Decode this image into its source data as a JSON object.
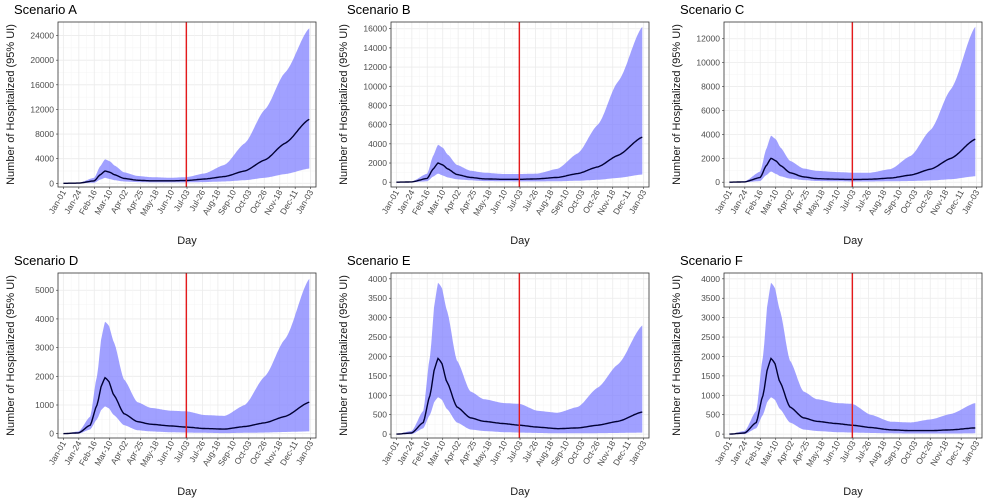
{
  "chart_data": [
    {
      "type": "area",
      "title": "Scenario A",
      "xlabel": "Day",
      "ylabel": "Number of Hospitalized (95% UI)",
      "x_ticks": [
        "Jan-01",
        "Jan-24",
        "Feb-16",
        "Mar-10",
        "Apr-02",
        "Apr-25",
        "May-18",
        "Jun-10",
        "Jul-03",
        "Jul-26",
        "Aug-18",
        "Sep-10",
        "Oct-03",
        "Oct-26",
        "Nov-18",
        "Dec-11",
        "Jan-03"
      ],
      "y_ticks": [
        0,
        4000,
        8000,
        12000,
        16000,
        20000,
        24000
      ],
      "ylim": [
        -600,
        26200
      ],
      "x_domain_days": [
        -8,
        376
      ],
      "vline_day": 183,
      "vline_color": "#e41a1c",
      "band_color": "#8080ff",
      "line_color": "#000033",
      "grid": true,
      "series": [
        {
          "x": [
            0,
            23,
            46,
            55,
            62,
            69,
            76,
            90,
            110,
            130,
            160,
            183,
            210,
            240,
            270,
            300,
            330,
            366
          ],
          "values": [
            0,
            30,
            400,
            1400,
            2000,
            1800,
            1400,
            800,
            500,
            400,
            400,
            450,
            700,
            1100,
            2000,
            3800,
            6500,
            10400
          ]
        },
        {
          "x": [
            0,
            23,
            46,
            55,
            62,
            69,
            76,
            90,
            110,
            130,
            160,
            183,
            210,
            240,
            270,
            300,
            330,
            366
          ],
          "values": [
            0,
            0,
            100,
            600,
            900,
            700,
            500,
            300,
            200,
            150,
            150,
            150,
            200,
            300,
            500,
            900,
            1500,
            2400
          ]
        },
        {
          "x": [
            0,
            23,
            46,
            55,
            62,
            69,
            76,
            90,
            110,
            130,
            160,
            183,
            210,
            240,
            270,
            300,
            330,
            366
          ],
          "values": [
            0,
            80,
            900,
            2800,
            3900,
            3600,
            2900,
            1800,
            1200,
            1000,
            900,
            1000,
            1600,
            3000,
            6500,
            12000,
            18000,
            25200
          ]
        }
      ]
    },
    {
      "type": "area",
      "title": "Scenario B",
      "xlabel": "Day",
      "ylabel": "Number of Hospitalized (95% UI)",
      "x_ticks": [
        "Jan-01",
        "Jan-24",
        "Feb-16",
        "Mar-10",
        "Apr-02",
        "Apr-25",
        "May-18",
        "Jun-10",
        "Jul-03",
        "Jul-26",
        "Aug-18",
        "Sep-10",
        "Oct-03",
        "Oct-26",
        "Nov-18",
        "Dec-11",
        "Jan-03"
      ],
      "y_ticks": [
        0,
        2000,
        4000,
        6000,
        8000,
        10000,
        12000,
        14000,
        16000
      ],
      "ylim": [
        -500,
        16700
      ],
      "x_domain_days": [
        -8,
        376
      ],
      "vline_day": 183,
      "vline_color": "#e41a1c",
      "band_color": "#8080ff",
      "line_color": "#000033",
      "grid": true,
      "series": [
        {
          "x": [
            0,
            23,
            46,
            55,
            62,
            69,
            76,
            90,
            110,
            130,
            160,
            183,
            210,
            240,
            270,
            300,
            330,
            366
          ],
          "values": [
            0,
            30,
            400,
            1400,
            2000,
            1800,
            1400,
            800,
            500,
            350,
            300,
            300,
            350,
            500,
            900,
            1600,
            2800,
            4700
          ]
        },
        {
          "x": [
            0,
            23,
            46,
            55,
            62,
            69,
            76,
            90,
            110,
            130,
            160,
            183,
            210,
            240,
            270,
            300,
            330,
            366
          ],
          "values": [
            0,
            0,
            100,
            600,
            900,
            700,
            500,
            300,
            200,
            120,
            100,
            80,
            80,
            100,
            150,
            250,
            450,
            800
          ]
        },
        {
          "x": [
            0,
            23,
            46,
            55,
            62,
            69,
            76,
            90,
            110,
            130,
            160,
            183,
            210,
            240,
            270,
            300,
            330,
            366
          ],
          "values": [
            0,
            80,
            900,
            2800,
            3900,
            3600,
            2900,
            1800,
            1200,
            1000,
            850,
            850,
            900,
            1400,
            3000,
            6000,
            10500,
            16200
          ]
        }
      ]
    },
    {
      "type": "area",
      "title": "Scenario C",
      "xlabel": "Day",
      "ylabel": "Number of Hospitalized (95% UI)",
      "x_ticks": [
        "Jan-01",
        "Jan-24",
        "Feb-16",
        "Mar-10",
        "Apr-02",
        "Apr-25",
        "May-18",
        "Jun-10",
        "Jul-03",
        "Jul-26",
        "Aug-18",
        "Sep-10",
        "Oct-03",
        "Oct-26",
        "Nov-18",
        "Dec-11",
        "Jan-03"
      ],
      "y_ticks": [
        0,
        2000,
        4000,
        6000,
        8000,
        10000,
        12000
      ],
      "ylim": [
        -400,
        13400
      ],
      "x_domain_days": [
        -8,
        376
      ],
      "vline_day": 183,
      "vline_color": "#e41a1c",
      "band_color": "#8080ff",
      "line_color": "#000033",
      "grid": true,
      "series": [
        {
          "x": [
            0,
            23,
            46,
            55,
            62,
            69,
            76,
            90,
            110,
            130,
            160,
            183,
            210,
            240,
            270,
            300,
            330,
            366
          ],
          "values": [
            0,
            30,
            400,
            1400,
            2000,
            1800,
            1400,
            800,
            450,
            300,
            250,
            230,
            250,
            350,
            600,
            1100,
            2000,
            3600
          ]
        },
        {
          "x": [
            0,
            23,
            46,
            55,
            62,
            69,
            76,
            90,
            110,
            130,
            160,
            183,
            210,
            240,
            270,
            300,
            330,
            366
          ],
          "values": [
            0,
            0,
            100,
            600,
            900,
            700,
            500,
            300,
            180,
            100,
            80,
            60,
            60,
            80,
            100,
            150,
            250,
            500
          ]
        },
        {
          "x": [
            0,
            23,
            46,
            55,
            62,
            69,
            76,
            90,
            110,
            130,
            160,
            183,
            210,
            240,
            270,
            300,
            330,
            366
          ],
          "values": [
            0,
            80,
            900,
            2800,
            3900,
            3600,
            2900,
            1800,
            1150,
            950,
            850,
            800,
            800,
            1100,
            2200,
            4400,
            7800,
            13000
          ]
        }
      ]
    },
    {
      "type": "area",
      "title": "Scenario D",
      "xlabel": "Day",
      "ylabel": "Number of Hospitalized (95% UI)",
      "x_ticks": [
        "Jan-01",
        "Jan-24",
        "Feb-16",
        "Mar-10",
        "Apr-02",
        "Apr-25",
        "May-18",
        "Jun-10",
        "Jul-03",
        "Jul-26",
        "Aug-18",
        "Sep-10",
        "Oct-03",
        "Oct-26",
        "Nov-18",
        "Dec-11",
        "Jan-03"
      ],
      "y_ticks": [
        0,
        1000,
        2000,
        3000,
        4000,
        5000
      ],
      "ylim": [
        -150,
        5600
      ],
      "x_domain_days": [
        -8,
        376
      ],
      "vline_day": 183,
      "vline_color": "#e41a1c",
      "band_color": "#8080ff",
      "line_color": "#000033",
      "grid": true,
      "series": [
        {
          "x": [
            0,
            23,
            40,
            50,
            57,
            62,
            67,
            75,
            90,
            110,
            130,
            160,
            183,
            210,
            240,
            270,
            300,
            330,
            366
          ],
          "values": [
            0,
            30,
            300,
            1000,
            1700,
            1950,
            1850,
            1350,
            700,
            420,
            330,
            270,
            230,
            180,
            160,
            250,
            380,
            600,
            1100
          ]
        },
        {
          "x": [
            0,
            23,
            40,
            50,
            57,
            62,
            67,
            75,
            90,
            110,
            130,
            160,
            183,
            210,
            240,
            270,
            300,
            330,
            366
          ],
          "values": [
            0,
            0,
            150,
            500,
            850,
            950,
            900,
            650,
            300,
            120,
            80,
            50,
            40,
            30,
            20,
            30,
            40,
            60,
            80
          ]
        },
        {
          "x": [
            0,
            23,
            40,
            50,
            57,
            62,
            67,
            75,
            90,
            110,
            130,
            160,
            183,
            210,
            240,
            270,
            300,
            330,
            366
          ],
          "values": [
            0,
            80,
            600,
            2000,
            3400,
            3900,
            3800,
            3200,
            1900,
            1100,
            900,
            800,
            780,
            650,
            620,
            1000,
            2000,
            3300,
            5400
          ]
        }
      ]
    },
    {
      "type": "area",
      "title": "Scenario E",
      "xlabel": "Day",
      "ylabel": "Number of Hospitalized (95% UI)",
      "x_ticks": [
        "Jan-01",
        "Jan-24",
        "Feb-16",
        "Mar-10",
        "Apr-02",
        "Apr-25",
        "May-18",
        "Jun-10",
        "Jul-03",
        "Jul-26",
        "Aug-18",
        "Sep-10",
        "Oct-03",
        "Oct-26",
        "Nov-18",
        "Dec-11",
        "Jan-03"
      ],
      "y_ticks": [
        0,
        500,
        1000,
        1500,
        2000,
        2500,
        3000,
        3500,
        4000
      ],
      "ylim": [
        -100,
        4150
      ],
      "x_domain_days": [
        -8,
        376
      ],
      "vline_day": 183,
      "vline_color": "#e41a1c",
      "band_color": "#8080ff",
      "line_color": "#000033",
      "grid": true,
      "series": [
        {
          "x": [
            0,
            23,
            40,
            50,
            57,
            62,
            67,
            75,
            90,
            110,
            130,
            160,
            183,
            210,
            240,
            270,
            300,
            330,
            366
          ],
          "values": [
            0,
            30,
            300,
            1000,
            1700,
            1950,
            1850,
            1350,
            700,
            420,
            330,
            270,
            230,
            180,
            140,
            160,
            230,
            330,
            570
          ]
        },
        {
          "x": [
            0,
            23,
            40,
            50,
            57,
            62,
            67,
            75,
            90,
            110,
            130,
            160,
            183,
            210,
            240,
            270,
            300,
            330,
            366
          ],
          "values": [
            0,
            0,
            150,
            500,
            850,
            950,
            900,
            650,
            300,
            120,
            80,
            50,
            40,
            30,
            20,
            20,
            25,
            30,
            40
          ]
        },
        {
          "x": [
            0,
            23,
            40,
            50,
            57,
            62,
            67,
            75,
            90,
            110,
            130,
            160,
            183,
            210,
            240,
            270,
            300,
            330,
            366
          ],
          "values": [
            0,
            80,
            600,
            2000,
            3400,
            3900,
            3800,
            3200,
            1900,
            1100,
            900,
            800,
            780,
            600,
            550,
            700,
            1200,
            1800,
            2800
          ]
        }
      ]
    },
    {
      "type": "area",
      "title": "Scenario F",
      "xlabel": "Day",
      "ylabel": "Number of Hospitalized (95% UI)",
      "x_ticks": [
        "Jan-01",
        "Jan-24",
        "Feb-16",
        "Mar-10",
        "Apr-02",
        "Apr-25",
        "May-18",
        "Jun-10",
        "Jul-03",
        "Jul-26",
        "Aug-18",
        "Sep-10",
        "Oct-03",
        "Oct-26",
        "Nov-18",
        "Dec-11",
        "Jan-03"
      ],
      "y_ticks": [
        0,
        500,
        1000,
        1500,
        2000,
        2500,
        3000,
        3500,
        4000
      ],
      "ylim": [
        -100,
        4150
      ],
      "x_domain_days": [
        -8,
        376
      ],
      "vline_day": 183,
      "vline_color": "#e41a1c",
      "band_color": "#8080ff",
      "line_color": "#000033",
      "grid": true,
      "series": [
        {
          "x": [
            0,
            23,
            40,
            50,
            57,
            62,
            67,
            75,
            90,
            110,
            130,
            160,
            183,
            210,
            240,
            270,
            300,
            330,
            366
          ],
          "values": [
            0,
            30,
            300,
            1000,
            1700,
            1950,
            1850,
            1350,
            700,
            420,
            330,
            270,
            230,
            170,
            110,
            90,
            90,
            110,
            160
          ]
        },
        {
          "x": [
            0,
            23,
            40,
            50,
            57,
            62,
            67,
            75,
            90,
            110,
            130,
            160,
            183,
            210,
            240,
            270,
            300,
            330,
            366
          ],
          "values": [
            0,
            0,
            150,
            500,
            850,
            950,
            900,
            650,
            300,
            120,
            80,
            50,
            40,
            30,
            20,
            15,
            15,
            15,
            20
          ]
        },
        {
          "x": [
            0,
            23,
            40,
            50,
            57,
            62,
            67,
            75,
            90,
            110,
            130,
            160,
            183,
            210,
            240,
            270,
            300,
            330,
            366
          ],
          "values": [
            0,
            80,
            600,
            2000,
            3400,
            3900,
            3800,
            3200,
            1900,
            1100,
            900,
            800,
            780,
            500,
            320,
            300,
            380,
            520,
            800
          ]
        }
      ]
    }
  ]
}
